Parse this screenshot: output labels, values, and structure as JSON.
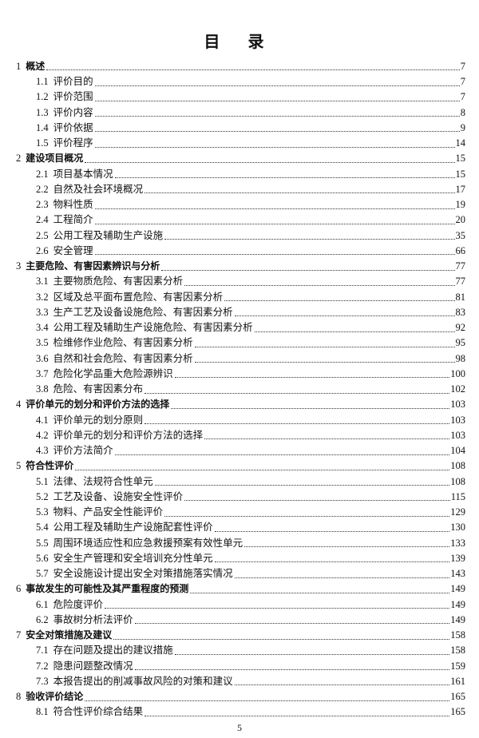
{
  "title": "目 录",
  "entries": [
    {
      "level": 1,
      "num": "1",
      "label": "概述",
      "page": "7"
    },
    {
      "level": 2,
      "num": "1.1",
      "label": "评价目的",
      "page": "7"
    },
    {
      "level": 2,
      "num": "1.2",
      "label": "评价范围",
      "page": "7"
    },
    {
      "level": 2,
      "num": "1.3",
      "label": "评价内容",
      "page": "8"
    },
    {
      "level": 2,
      "num": "1.4",
      "label": "评价依据",
      "page": "9"
    },
    {
      "level": 2,
      "num": "1.5",
      "label": "评价程序",
      "page": "14"
    },
    {
      "level": 1,
      "num": "2",
      "label": "建设项目概况",
      "page": "15"
    },
    {
      "level": 2,
      "num": "2.1",
      "label": "项目基本情况",
      "page": "15"
    },
    {
      "level": 2,
      "num": "2.2",
      "label": "自然及社会环境概况",
      "page": "17"
    },
    {
      "level": 2,
      "num": "2.3",
      "label": "物料性质",
      "page": "19"
    },
    {
      "level": 2,
      "num": "2.4",
      "label": "工程简介",
      "page": "20"
    },
    {
      "level": 2,
      "num": "2.5",
      "label": "公用工程及辅助生产设施",
      "page": "35"
    },
    {
      "level": 2,
      "num": "2.6",
      "label": "安全管理",
      "page": "66"
    },
    {
      "level": 1,
      "num": "3",
      "label": "主要危险、有害因素辨识与分析",
      "page": "77"
    },
    {
      "level": 2,
      "num": "3.1",
      "label": "主要物质危险、有害因素分析",
      "page": "77"
    },
    {
      "level": 2,
      "num": "3.2",
      "label": "区域及总平面布置危险、有害因素分析",
      "page": "81"
    },
    {
      "level": 2,
      "num": "3.3",
      "label": "生产工艺及设备设施危险、有害因素分析",
      "page": "83"
    },
    {
      "level": 2,
      "num": "3.4",
      "label": "公用工程及辅助生产设施危险、有害因素分析",
      "page": "92"
    },
    {
      "level": 2,
      "num": "3.5",
      "label": "检维修作业危险、有害因素分析",
      "page": "95"
    },
    {
      "level": 2,
      "num": "3.6",
      "label": "自然和社会危险、有害因素分析",
      "page": "98"
    },
    {
      "level": 2,
      "num": "3.7",
      "label": "危险化学品重大危险源辨识",
      "page": "100"
    },
    {
      "level": 2,
      "num": "3.8",
      "label": "危险、有害因素分布",
      "page": "102"
    },
    {
      "level": 1,
      "num": "4",
      "label": "评价单元的划分和评价方法的选择",
      "page": "103"
    },
    {
      "level": 2,
      "num": "4.1",
      "label": "评价单元的划分原则",
      "page": "103"
    },
    {
      "level": 2,
      "num": "4.2",
      "label": "评价单元的划分和评价方法的选择",
      "page": "103"
    },
    {
      "level": 2,
      "num": "4.3",
      "label": "评价方法简介",
      "page": "104"
    },
    {
      "level": 1,
      "num": "5",
      "label": "符合性评价",
      "page": "108"
    },
    {
      "level": 2,
      "num": "5.1",
      "label": "法律、法规符合性单元",
      "page": "108"
    },
    {
      "level": 2,
      "num": "5.2",
      "label": "工艺及设备、设施安全性评价",
      "page": "115"
    },
    {
      "level": 2,
      "num": "5.3",
      "label": "物料、产品安全性能评价",
      "page": "129"
    },
    {
      "level": 2,
      "num": "5.4",
      "label": "公用工程及辅助生产设施配套性评价",
      "page": "130"
    },
    {
      "level": 2,
      "num": "5.5",
      "label": "周围环境适应性和应急救援预案有效性单元",
      "page": "133"
    },
    {
      "level": 2,
      "num": "5.6",
      "label": "安全生产管理和安全培训充分性单元",
      "page": "139"
    },
    {
      "level": 2,
      "num": "5.7",
      "label": "安全设施设计提出安全对策措施落实情况",
      "page": "143"
    },
    {
      "level": 1,
      "num": "6",
      "label": "事故发生的可能性及其严重程度的预测",
      "page": "149"
    },
    {
      "level": 2,
      "num": "6.1",
      "label": "危险度评价",
      "page": "149"
    },
    {
      "level": 2,
      "num": "6.2",
      "label": "事故树分析法评价",
      "page": "149"
    },
    {
      "level": 1,
      "num": "7",
      "label": "安全对策措施及建议",
      "page": "158"
    },
    {
      "level": 2,
      "num": "7.1",
      "label": "存在问题及提出的建议措施",
      "page": "158"
    },
    {
      "level": 2,
      "num": "7.2",
      "label": "隐患问题整改情况",
      "page": "159"
    },
    {
      "level": 2,
      "num": "7.3",
      "label": "本报告提出的削减事故风险的对策和建议",
      "page": "161"
    },
    {
      "level": 1,
      "num": "8",
      "label": "验收评价结论",
      "page": "165"
    },
    {
      "level": 2,
      "num": "8.1",
      "label": "符合性评价综合结果",
      "page": "165"
    }
  ],
  "footer": {
    "page_number": "5"
  }
}
